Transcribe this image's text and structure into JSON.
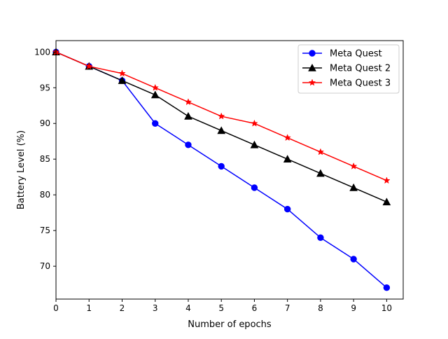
{
  "chart_data": {
    "type": "line",
    "title": "",
    "xlabel": "Number of epochs",
    "ylabel": "Battery Level (%)",
    "x": [
      0,
      1,
      2,
      3,
      4,
      5,
      6,
      7,
      8,
      9,
      10
    ],
    "xlim": [
      0,
      10.5
    ],
    "ylim": [
      65.4,
      101.6
    ],
    "xticks": [
      0,
      1,
      2,
      3,
      4,
      5,
      6,
      7,
      8,
      9,
      10
    ],
    "yticks": [
      70,
      75,
      80,
      85,
      90,
      95,
      100
    ],
    "grid": false,
    "legend_position": "top-right",
    "series": [
      {
        "name": "Meta Quest",
        "color": "#0000ff",
        "marker": "circle",
        "values": [
          100,
          98,
          96,
          90,
          87,
          84,
          81,
          78,
          74,
          71,
          67
        ]
      },
      {
        "name": "Meta Quest 2",
        "color": "#000000",
        "marker": "triangle",
        "values": [
          100,
          98,
          96,
          94,
          91,
          89,
          87,
          85,
          83,
          81,
          79
        ]
      },
      {
        "name": "Meta Quest 3",
        "color": "#ff0000",
        "marker": "star",
        "values": [
          100,
          98,
          97,
          95,
          93,
          91,
          90,
          88,
          86,
          84,
          82
        ]
      }
    ]
  }
}
